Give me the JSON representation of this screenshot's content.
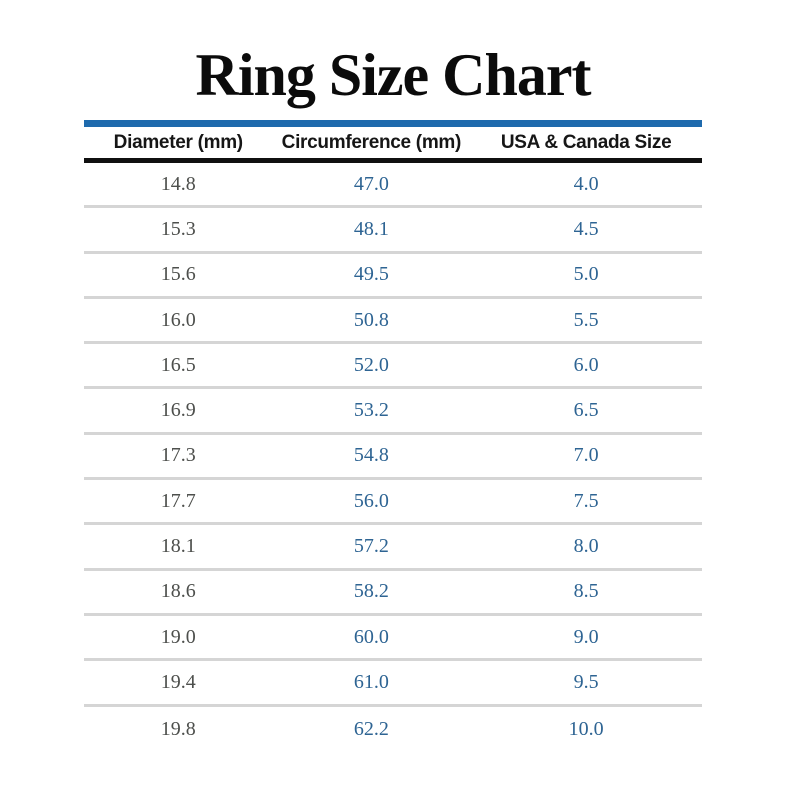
{
  "colors": {
    "background": "#ffffff",
    "title_text": "#0b0b0b",
    "accent_rule_blue": "#1e6aad",
    "header_rule_black": "#101010",
    "header_text": "#161616",
    "diameter_text": "#4d4f4c",
    "value_text_blue": "#2e6493",
    "row_separator_gray": "#d5d5d5"
  },
  "chart_data": {
    "type": "table",
    "title": "Ring Size Chart",
    "columns": [
      "Diameter (mm)",
      "Circumference (mm)",
      "USA & Canada Size"
    ],
    "rows": [
      [
        "14.8",
        "47.0",
        "4.0"
      ],
      [
        "15.3",
        "48.1",
        "4.5"
      ],
      [
        "15.6",
        "49.5",
        "5.0"
      ],
      [
        "16.0",
        "50.8",
        "5.5"
      ],
      [
        "16.5",
        "52.0",
        "6.0"
      ],
      [
        "16.9",
        "53.2",
        "6.5"
      ],
      [
        "17.3",
        "54.8",
        "7.0"
      ],
      [
        "17.7",
        "56.0",
        "7.5"
      ],
      [
        "18.1",
        "57.2",
        "8.0"
      ],
      [
        "18.6",
        "58.2",
        "8.5"
      ],
      [
        "19.0",
        "60.0",
        "9.0"
      ],
      [
        "19.4",
        "61.0",
        "9.5"
      ],
      [
        "19.8",
        "62.2",
        "10.0"
      ]
    ]
  }
}
